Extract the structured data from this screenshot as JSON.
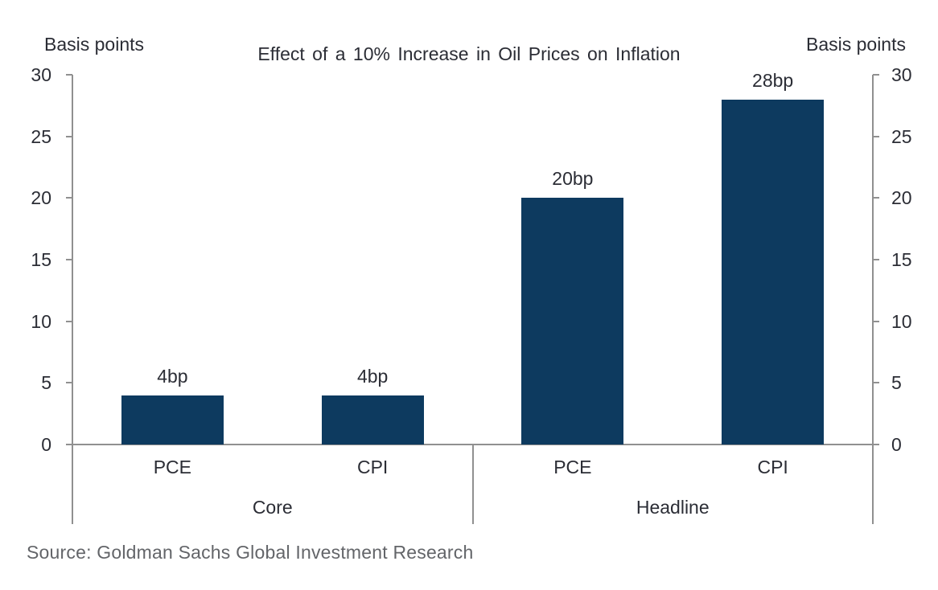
{
  "chart": {
    "title": "Effect of a 10% Increase in Oil Prices on Inflation",
    "left_axis_title": "Basis points",
    "right_axis_title": "Basis points",
    "source": "Source: Goldman Sachs Global Investment Research"
  },
  "chart_data": {
    "type": "bar",
    "title": "Effect of a 10% Increase in Oil Prices on Inflation",
    "ylabel_left": "Basis points",
    "ylabel_right": "Basis points",
    "ylim": [
      0,
      30
    ],
    "yticks": [
      0,
      5,
      10,
      15,
      20,
      25,
      30
    ],
    "grid": false,
    "legend": false,
    "groups": [
      {
        "label": "Core",
        "categories": [
          "PCE",
          "CPI"
        ],
        "values": [
          4,
          4
        ]
      },
      {
        "label": "Headline",
        "categories": [
          "PCE",
          "CPI"
        ],
        "values": [
          20,
          28
        ]
      }
    ],
    "value_labels": [
      "4bp",
      "4bp",
      "20bp",
      "28bp"
    ],
    "bar_color": "#0d3a5f",
    "axis_color": "#909090",
    "text_color": "#2b2d35",
    "source_color": "#636569",
    "source": "Source: Goldman Sachs Global Investment Research"
  }
}
